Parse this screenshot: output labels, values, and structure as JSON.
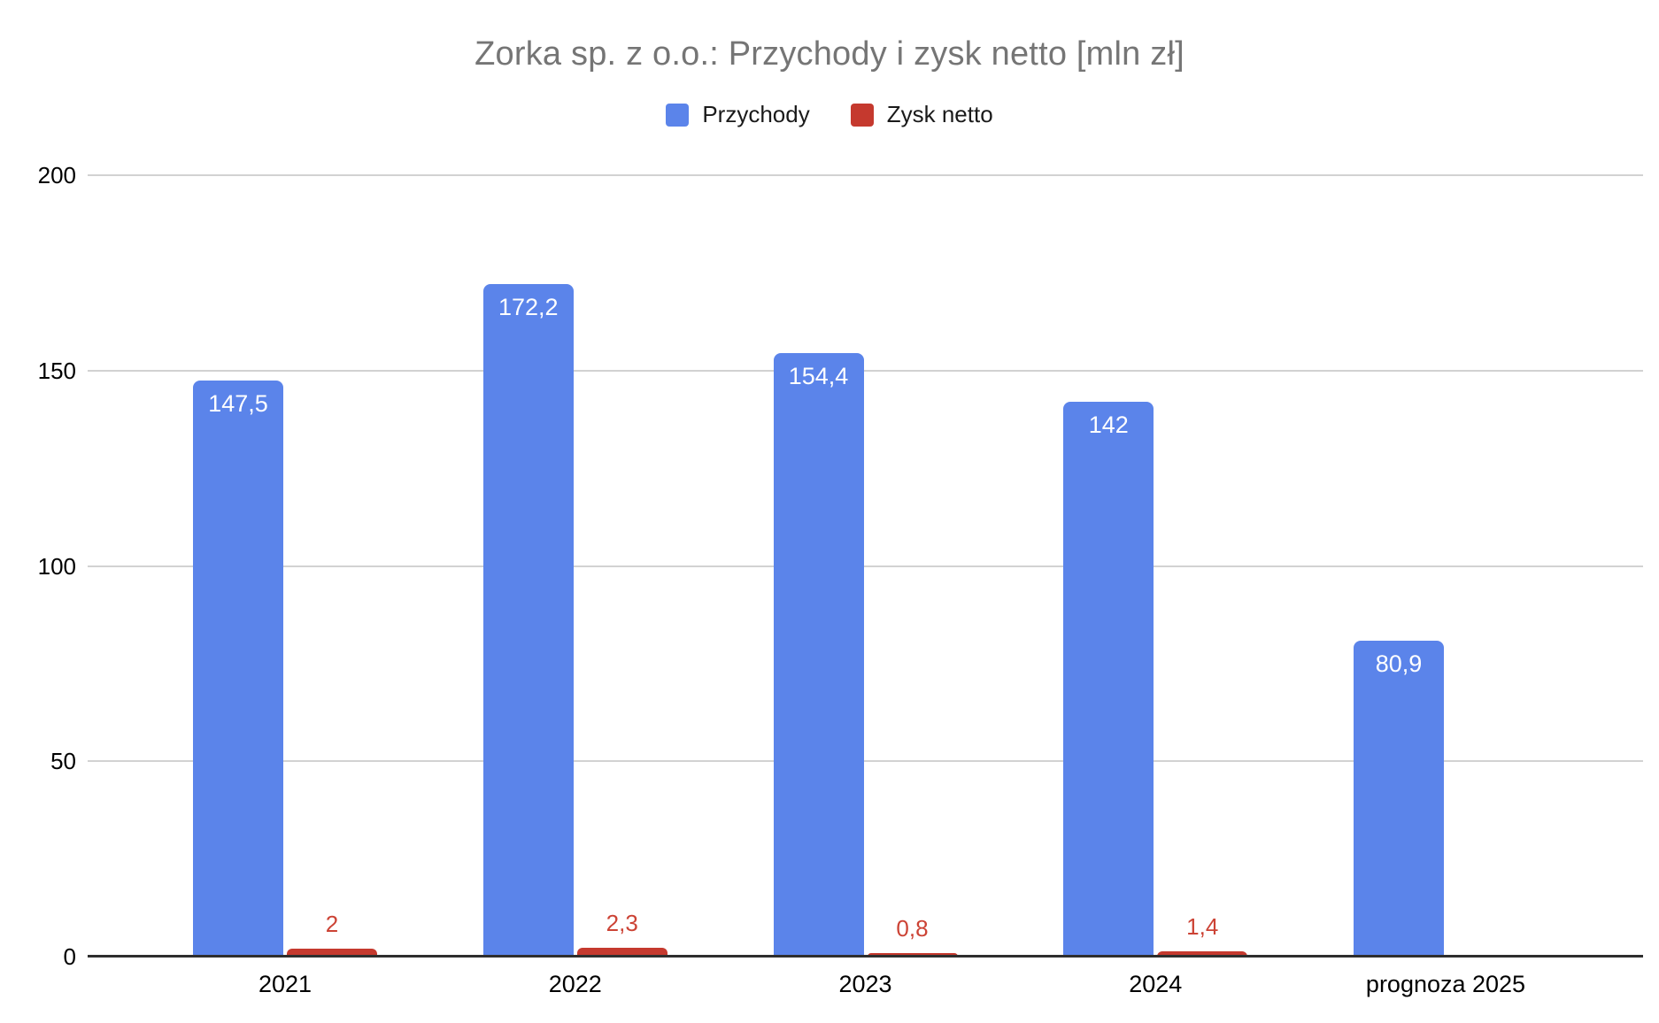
{
  "title": "Zorka sp. z o.o.: Przychody i zysk netto [mln zł]",
  "colors": {
    "title_text": "#757575",
    "blue_series": "#5b84ea",
    "red_series": "#c5392e",
    "red_label_text": "#cc4335",
    "gridline": "#d2d2d2",
    "axis_line": "#2e2e2e",
    "tick_text": "#000000",
    "bar_label_text": "#ffffff"
  },
  "chart_data": {
    "type": "bar",
    "title": "Zorka sp. z o.o.: Przychody i zysk netto [mln zł]",
    "xlabel": "",
    "ylabel": "",
    "ylim": [
      0,
      200
    ],
    "yticks": [
      0,
      50,
      100,
      150,
      200
    ],
    "ytick_labels": [
      "0",
      "50",
      "100",
      "150",
      "200"
    ],
    "grid": "horizontal",
    "legend_position": "top",
    "categories": [
      "2021",
      "2022",
      "2023",
      "2024",
      "prognoza 2025"
    ],
    "series": [
      {
        "name": "Przychody",
        "color": "#5b84ea",
        "values": [
          147.5,
          172.2,
          154.4,
          142,
          80.9
        ],
        "labels": [
          "147,5",
          "172,2",
          "154,4",
          "142",
          "80,9"
        ],
        "label_position": "inside-top",
        "label_color": "#ffffff"
      },
      {
        "name": "Zysk netto",
        "color": "#c5392e",
        "values": [
          2,
          2.3,
          0.8,
          1.4,
          null
        ],
        "labels": [
          "2",
          "2,3",
          "0,8",
          "1,4",
          null
        ],
        "label_position": "above",
        "label_color": "#cc4335"
      }
    ]
  }
}
